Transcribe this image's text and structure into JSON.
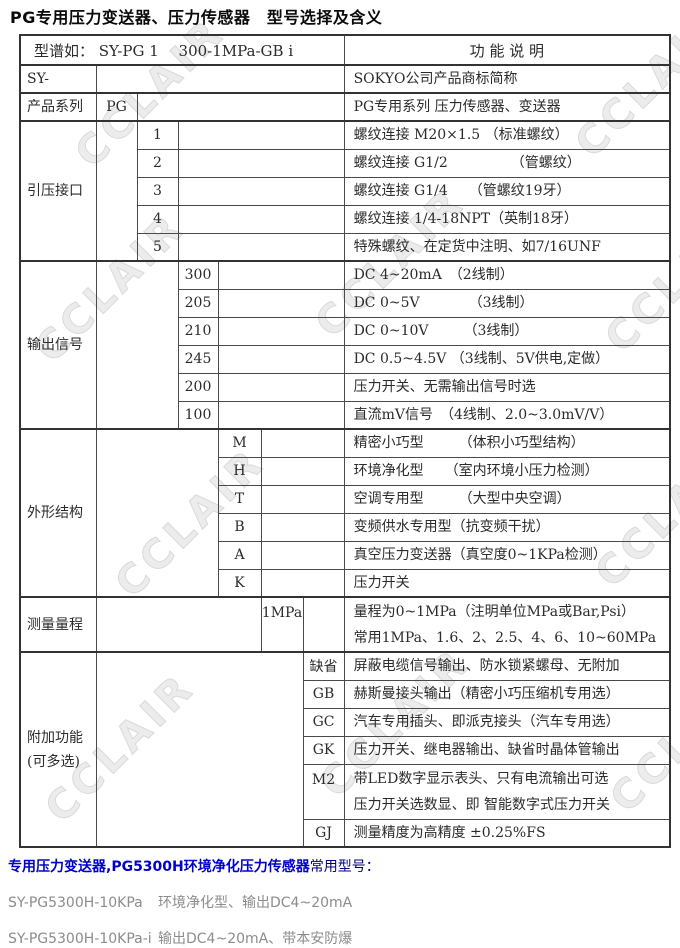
{
  "page": {
    "title": "PG专用压力变送器、压力传感器　型号选择及含义",
    "watermark_text": "CCLAIR"
  },
  "colors": {
    "accent_bold_blue": "#0000cc",
    "accent_navy": "#000080",
    "muted_gray": "#8c8c8c",
    "border": "#333333",
    "watermark": "#dadada"
  },
  "table": {
    "header": {
      "model_label": "型谱如： SY-PG 1　 300-1MPa-GB i",
      "function_label": "功 能 说 明"
    },
    "sections": [
      {
        "id": "brand",
        "label_lines": [
          "SY-"
        ],
        "code_col": null,
        "rows": [
          {
            "code": null,
            "desc": [
              "SOKYO公司产品商标简称"
            ]
          }
        ]
      },
      {
        "id": "product-series",
        "label_lines": [
          "产品系列"
        ],
        "code_col": 2,
        "rows": [
          {
            "code": "PG",
            "desc": [
              "PG专用系列 压力传感器、变送器"
            ]
          }
        ]
      },
      {
        "id": "pressure-port",
        "label_lines": [
          "引压接口"
        ],
        "code_col": 3,
        "rows": [
          {
            "code": "1",
            "desc": [
              "螺纹连接 M20×1.5 （标准螺纹）"
            ]
          },
          {
            "code": "2",
            "desc": [
              "螺纹连接 G1/2　　　　　（管螺纹）"
            ]
          },
          {
            "code": "3",
            "desc": [
              "螺纹连接 G1/4　　（管螺纹19牙）"
            ]
          },
          {
            "code": "4",
            "desc": [
              "螺纹连接 1/4-18NPT（英制18牙）"
            ]
          },
          {
            "code": "5",
            "desc": [
              "特殊螺纹、在定货中注明、如7/16UNF"
            ]
          }
        ]
      },
      {
        "id": "output-signal",
        "label_lines": [
          "输出信号"
        ],
        "code_col": 4,
        "rows": [
          {
            "code": "300",
            "desc": [
              "DC 4~20mA　（2线制）"
            ]
          },
          {
            "code": "205",
            "desc": [
              "DC 0~5V　　　　（3线制）"
            ]
          },
          {
            "code": "210",
            "desc": [
              "DC 0~10V　　　（3线制）"
            ]
          },
          {
            "code": "245",
            "desc": [
              "DC 0.5~4.5V （3线制、5V供电,定做）"
            ]
          },
          {
            "code": "200",
            "desc": [
              "压力开关、无需输出信号时选"
            ]
          },
          {
            "code": "100",
            "desc": [
              "直流mV信号　（4线制、2.0~3.0mV/V）"
            ]
          }
        ]
      },
      {
        "id": "form-structure",
        "label_lines": [
          "外形结构"
        ],
        "code_col": 5,
        "rows": [
          {
            "code": "M",
            "desc": [
              "精密小巧型　　　（体积小巧型结构）"
            ]
          },
          {
            "code": "H",
            "desc": [
              "环境净化型　　（室内环境小压力检测）"
            ]
          },
          {
            "code": "T",
            "desc": [
              "空调专用型　　　（大型中央空调）"
            ]
          },
          {
            "code": "B",
            "desc": [
              "变频供水专用型（抗变频干扰）"
            ]
          },
          {
            "code": "A",
            "desc": [
              "真空压力变送器（真空度0~1KPa检测）"
            ]
          },
          {
            "code": "K",
            "desc": [
              "压力开关"
            ]
          }
        ]
      },
      {
        "id": "measure-range",
        "label_lines": [
          "测量量程"
        ],
        "code_col": 6,
        "rows": [
          {
            "code": "1MPa",
            "h": 55,
            "desc": [
              "量程为0~1MPa（注明单位MPa或Bar,Psi）",
              "常用1MPa、1.6、2、2.5、4、6、10~60MPa"
            ]
          }
        ]
      },
      {
        "id": "additional-functions",
        "label_lines": [
          "附加功能",
          "(可多选)"
        ],
        "code_col": 7,
        "rows": [
          {
            "code": "缺省",
            "desc": [
              "屏蔽电缆信号输出、防水锁紧螺母、无附加"
            ]
          },
          {
            "code": "GB",
            "desc": [
              "赫斯曼接头输出（精密小巧压缩机专用选）"
            ]
          },
          {
            "code": "GC",
            "desc": [
              "汽车专用插头、即派克接头（汽车专用选）"
            ]
          },
          {
            "code": "GK",
            "desc": [
              "压力开关、继电器输出、缺省时晶体管输出"
            ]
          },
          {
            "code": "M2",
            "h": 55,
            "desc": [
              "带LED数字显示表头、只有电流输出可选",
              "压力开关选数显、即 智能数字式压力开关"
            ]
          },
          {
            "code": "GJ",
            "desc": [
              "测量精度为高精度 ±0.25%FS"
            ]
          }
        ]
      }
    ]
  },
  "footer": {
    "highlight": "专用压力变送器,PG5300H环境净化压力传感器",
    "highlight_suffix": "常用型号：",
    "models": [
      {
        "model": "SY-PG5300H-10KPa",
        "desc": "环境净化型、输出DC4~20mA"
      },
      {
        "model": "SY-PG5300H-10KPa-i",
        "desc": "输出DC4~20mA、带本安防爆"
      }
    ]
  }
}
